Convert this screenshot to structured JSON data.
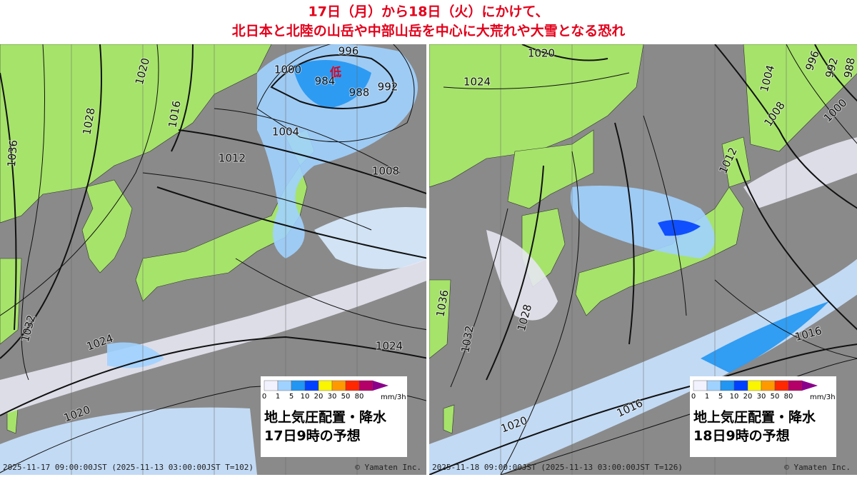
{
  "header": {
    "line1": "17日（月）から18日（火）にかけて、",
    "line2": "北日本と北陸の山岳や中部山岳を中心に大荒れや大雪となる恐れ"
  },
  "legend": {
    "ticks": [
      "0",
      "1",
      "5",
      "10",
      "20",
      "30",
      "50",
      "80"
    ],
    "unit": "mm/3h",
    "colors": [
      "#f2f2ff",
      "#a0d2ff",
      "#2196f3",
      "#0041ff",
      "#faf500",
      "#ff9900",
      "#ff2800",
      "#b40068"
    ]
  },
  "panels": [
    {
      "isobar_labels": [
        "996",
        "1000",
        "984",
        "988",
        "992",
        "1004",
        "1012",
        "1008",
        "1020",
        "1016",
        "1028",
        "1036",
        "1032",
        "1024",
        "1024",
        "1020"
      ],
      "low_label": "低",
      "caption": [
        "地上気圧配置・降水",
        "17日9時の予想"
      ],
      "timestamp": "2025-11-17 09:00:00JST (2025-11-13 03:00:00JST T=102)",
      "credit": "© Yamaten Inc."
    },
    {
      "isobar_labels": [
        "1020",
        "1024",
        "996",
        "992",
        "988",
        "1004",
        "1000",
        "1008",
        "1012",
        "1036",
        "1028",
        "1032",
        "1016",
        "1016",
        "1020"
      ],
      "caption": [
        "地上気圧配置・降水",
        "18日9時の予想"
      ],
      "timestamp": "2025-11-18 09:00:00JST (2025-11-13 03:00:00JST T=126)",
      "credit": "© Yamaten Inc."
    }
  ]
}
